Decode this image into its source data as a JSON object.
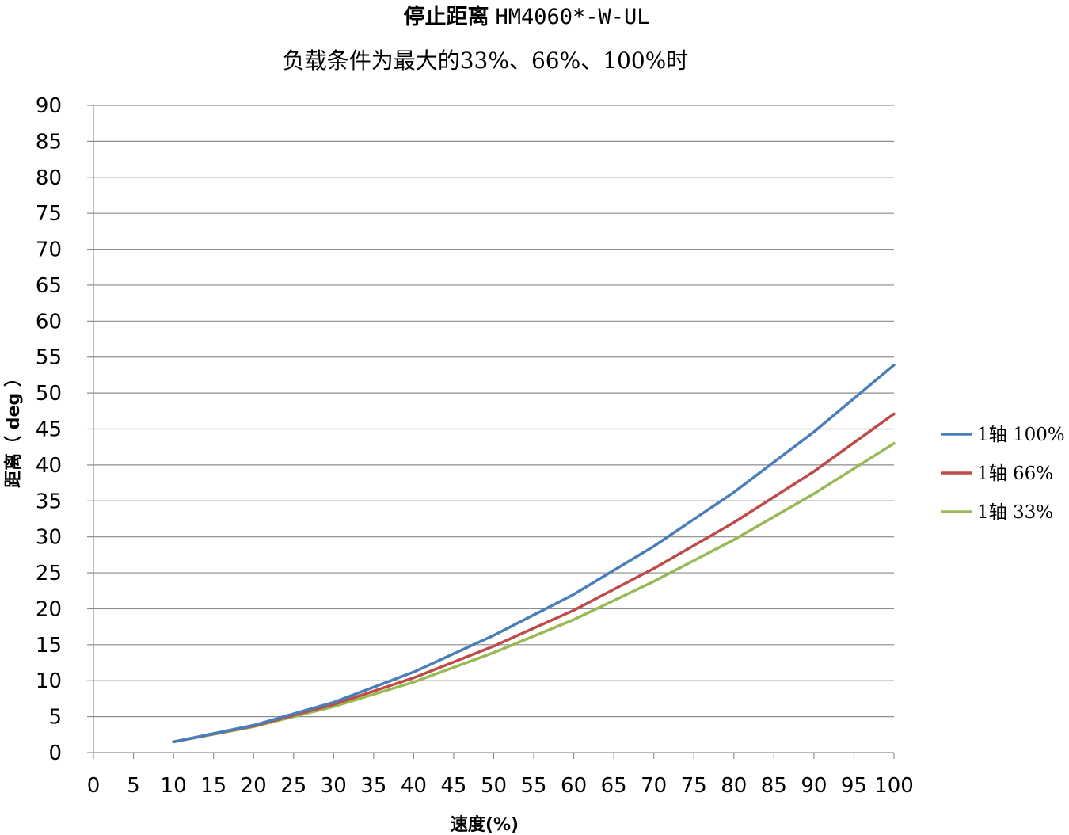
{
  "chart_data": {
    "type": "line",
    "title_main": "停止距离",
    "title_code": "HM4060*-W-UL",
    "subtitle": "负载条件为最大的33%、66%、100%时",
    "xlabel": "速度(%)",
    "ylabel": "距离（ deg ）",
    "xlim": [
      0,
      100
    ],
    "ylim": [
      0,
      90
    ],
    "xticks": [
      0,
      5,
      10,
      15,
      20,
      25,
      30,
      35,
      40,
      45,
      50,
      55,
      60,
      65,
      70,
      75,
      80,
      85,
      90,
      95,
      100
    ],
    "yticks": [
      0,
      5,
      10,
      15,
      20,
      25,
      30,
      35,
      40,
      45,
      50,
      55,
      60,
      65,
      70,
      75,
      80,
      85,
      90
    ],
    "grid": "horizontal",
    "legend_position": "right",
    "x": [
      10,
      20,
      30,
      40,
      50,
      60,
      70,
      80,
      90,
      100
    ],
    "series": [
      {
        "name": "1轴 100%",
        "color": "#4A7EBB",
        "values": [
          1.5,
          3.8,
          7.0,
          11.2,
          16.3,
          22.0,
          28.7,
          36.2,
          44.6,
          53.9
        ]
      },
      {
        "name": "1轴 66%",
        "color": "#BE4B48",
        "values": [
          1.5,
          3.7,
          6.7,
          10.4,
          14.8,
          19.8,
          25.6,
          32.0,
          39.1,
          47.1
        ]
      },
      {
        "name": "1轴 33%",
        "color": "#98B954",
        "values": [
          1.5,
          3.6,
          6.4,
          9.8,
          13.9,
          18.5,
          23.8,
          29.6,
          36.0,
          43.0
        ]
      }
    ]
  }
}
